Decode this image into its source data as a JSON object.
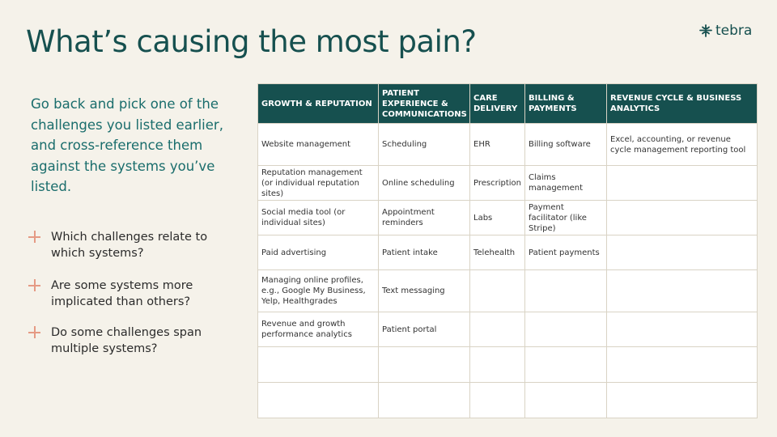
{
  "slide": {
    "title": "What’s causing the most pain?",
    "logo_text": "tebra",
    "intro": "Go back and pick one of the challenges you listed earlier, and cross-reference them against the systems you’ve listed.",
    "questions": [
      "Which challenges relate to which systems?",
      "Are some systems more implicated than others?",
      "Do some challenges span multiple systems?"
    ]
  },
  "table": {
    "headers": [
      "GROWTH & REPUTATION",
      "PATIENT EXPERIENCE & COMMUNICATIONS",
      "CARE DELIVERY",
      "BILLING & PAYMENTS",
      "REVENUE CYCLE & BUSINESS ANALYTICS"
    ],
    "rows": [
      [
        "Website management",
        "Scheduling",
        "EHR",
        "Billing software",
        "Excel, accounting, or revenue cycle management reporting tool"
      ],
      [
        "Reputation management (or individual reputation sites)",
        "Online scheduling",
        "Prescription",
        "Claims management",
        ""
      ],
      [
        "Social media tool (or individual sites)",
        "Appointment reminders",
        "Labs",
        "Payment facilitator (like Stripe)",
        ""
      ],
      [
        "Paid advertising",
        "Patient intake",
        "Telehealth",
        "Patient payments",
        ""
      ],
      [
        "Managing online profiles, e.g., Google My Business, Yelp, Healthgrades",
        "Text messaging",
        "",
        "",
        ""
      ],
      [
        "Revenue and growth performance analytics",
        "Patient portal",
        "",
        "",
        ""
      ],
      [
        "",
        "",
        "",
        "",
        ""
      ],
      [
        "",
        "",
        "",
        "",
        ""
      ]
    ]
  },
  "colors": {
    "background": "#f5f2ea",
    "primary": "#16504f",
    "accent": "#e59a84"
  },
  "icons": [
    "tebra-logo-icon",
    "plus-icon"
  ]
}
